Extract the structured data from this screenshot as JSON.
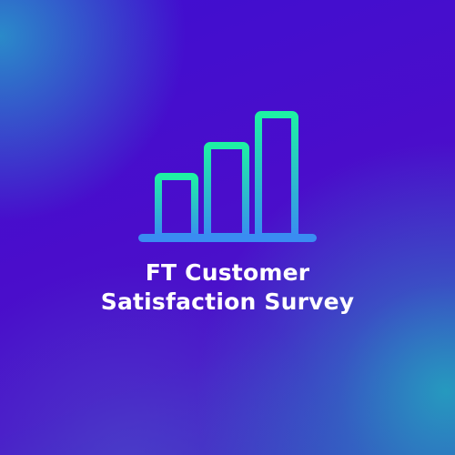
{
  "title": {
    "line1": "FT Customer",
    "line2": "Satisfaction Survey"
  },
  "logo": {
    "icon": "bar-chart-icon",
    "gradient_top": "#1ef0a4",
    "gradient_bottom": "#3a8cf2"
  }
}
